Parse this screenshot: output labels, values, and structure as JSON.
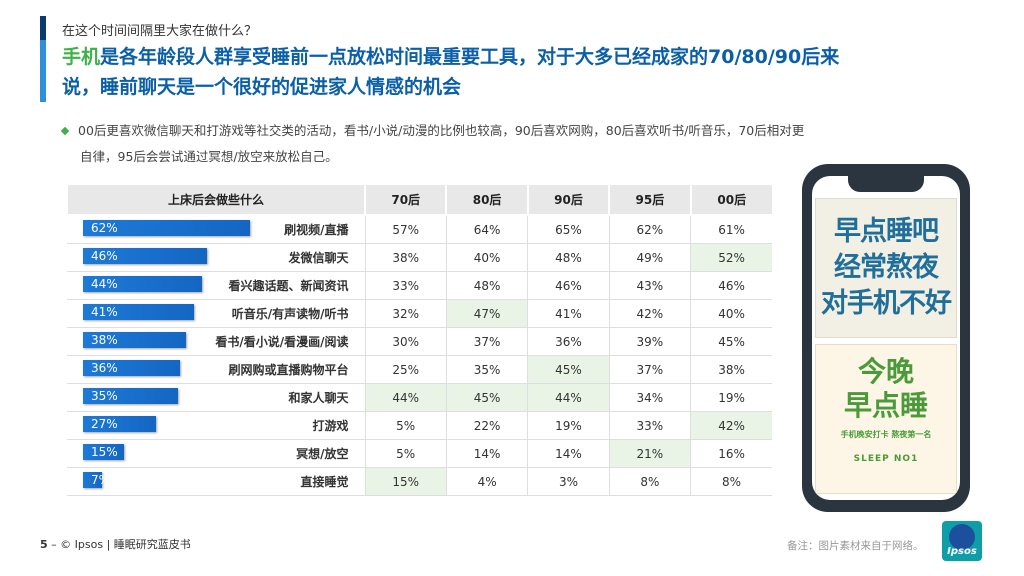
{
  "kicker": "在这个时间间隔里大家在做什么？",
  "headline": {
    "highlight": "手机",
    "line1_rest": "是各年龄段人群享受睡前一点放松时间最重要工具，对于大多已经成家的70/80/90后来",
    "line2": "说，睡前聊天是一个很好的促进家人情感的机会"
  },
  "bullet": {
    "line1": "00后更喜欢微信聊天和打游戏等社交类的活动，看书/小说/动漫的比例也较高，90后喜欢网购，80后喜欢听书/听音乐，70后相对更",
    "line2": "自律，95后会尝试通过冥想/放空来放松自己。"
  },
  "table": {
    "header": [
      "上床后会做些什么",
      "70后",
      "80后",
      "90后",
      "95后",
      "00后"
    ],
    "rows": [
      {
        "pct": "62%",
        "bar": 0.62,
        "activity": "刷视频/直播",
        "v": [
          "57%",
          "64%",
          "65%",
          "62%",
          "61%"
        ],
        "hl": []
      },
      {
        "pct": "46%",
        "bar": 0.46,
        "activity": "发微信聊天",
        "v": [
          "38%",
          "40%",
          "48%",
          "49%",
          "52%"
        ],
        "hl": [
          4
        ]
      },
      {
        "pct": "44%",
        "bar": 0.44,
        "activity": "看兴趣话题、新闻资讯",
        "v": [
          "33%",
          "48%",
          "46%",
          "43%",
          "46%"
        ],
        "hl": []
      },
      {
        "pct": "41%",
        "bar": 0.41,
        "activity": "听音乐/有声读物/听书",
        "v": [
          "32%",
          "47%",
          "41%",
          "42%",
          "40%"
        ],
        "hl": [
          1
        ]
      },
      {
        "pct": "38%",
        "bar": 0.38,
        "activity": "看书/看小说/看漫画/阅读",
        "v": [
          "30%",
          "37%",
          "36%",
          "39%",
          "45%"
        ],
        "hl": []
      },
      {
        "pct": "36%",
        "bar": 0.36,
        "activity": "刷网购或直播购物平台",
        "v": [
          "25%",
          "35%",
          "45%",
          "37%",
          "38%"
        ],
        "hl": [
          2
        ]
      },
      {
        "pct": "35%",
        "bar": 0.35,
        "activity": "和家人聊天",
        "v": [
          "44%",
          "45%",
          "44%",
          "34%",
          "19%"
        ],
        "hl": [
          0,
          1,
          2
        ]
      },
      {
        "pct": "27%",
        "bar": 0.27,
        "activity": "打游戏",
        "v": [
          "5%",
          "22%",
          "19%",
          "33%",
          "42%"
        ],
        "hl": [
          4
        ]
      },
      {
        "pct": "15%",
        "bar": 0.15,
        "activity": "冥想/放空",
        "v": [
          "5%",
          "14%",
          "14%",
          "21%",
          "16%"
        ],
        "hl": [
          3
        ]
      },
      {
        "pct": "7%",
        "bar": 0.07,
        "activity": "直接睡觉",
        "v": [
          "15%",
          "4%",
          "3%",
          "8%",
          "8%"
        ],
        "hl": [
          0
        ]
      }
    ]
  },
  "phone": {
    "poster1_lines": [
      "早点睡吧",
      "经常熬夜",
      "对手机不好"
    ],
    "poster2_line1": "今晚",
    "poster2_line2": "早点睡",
    "poster2_small": "手机晚安打卡 熬夜第一名",
    "poster2_tag": "SLEEP NO1"
  },
  "footer": {
    "page_num": "5",
    "dash": " – ",
    "copyright": "© Ipsos | 睡眠研究蓝皮书",
    "note": "备注：图片素材来自于网络。",
    "logo_text": "Ipsos"
  },
  "colors": {
    "accent_blue": "#0b5fa6",
    "bar_blue": "#1d7ad6",
    "highlight_green": "#3fb14a",
    "cell_highlight": "#e9f4e6"
  }
}
